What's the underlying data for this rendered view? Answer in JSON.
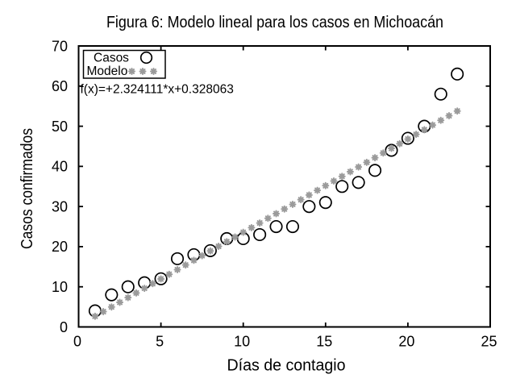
{
  "chart_data": {
    "type": "scatter",
    "title": "Figura 6: Modelo lineal para los casos en Michoacán",
    "xlabel": "Días de contagio",
    "ylabel": "Casos confirmados",
    "xlim": [
      0,
      25
    ],
    "ylim": [
      0,
      70
    ],
    "xticks": [
      0,
      5,
      10,
      15,
      20,
      25
    ],
    "yticks": [
      0,
      10,
      20,
      30,
      40,
      50,
      60,
      70
    ],
    "grid": false,
    "legend_position": "top-left",
    "annotation": "f(x)=+2.324111*x+0.328063",
    "series": [
      {
        "name": "Casos",
        "type": "scatter",
        "marker": "open-circle",
        "color": "#000000",
        "x": [
          1,
          2,
          3,
          4,
          5,
          6,
          7,
          8,
          9,
          10,
          11,
          12,
          13,
          14,
          15,
          16,
          17,
          18,
          19,
          20,
          21,
          22,
          23
        ],
        "y": [
          4,
          8,
          10,
          11,
          12,
          17,
          18,
          19,
          22,
          22,
          23,
          25,
          25,
          30,
          31,
          35,
          36,
          39,
          44,
          47,
          50,
          58,
          63
        ]
      },
      {
        "name": "Modelo",
        "type": "model-points",
        "marker": "asterisk",
        "color": "#9b9b9b",
        "model": {
          "slope": 2.324111,
          "intercept": 0.328063,
          "x_start": 1,
          "x_end": 23,
          "x_step": 0.5
        }
      }
    ]
  }
}
